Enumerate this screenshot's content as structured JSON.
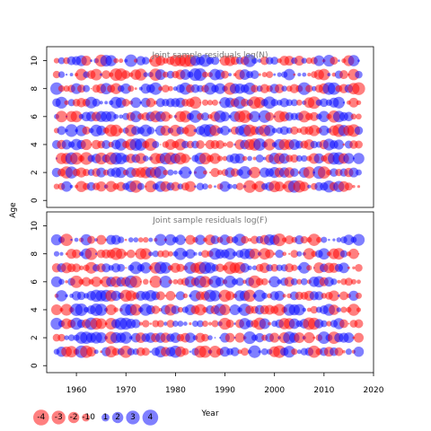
{
  "chart_data": {
    "type": "scatter",
    "variant": "bubble",
    "shared": {
      "ylabel": "Age",
      "xlabel": "Year",
      "xlim": [
        1954,
        2020
      ],
      "x_ticks": [
        1960,
        1970,
        1980,
        1990,
        2000,
        2010,
        2020
      ],
      "ylim": [
        -0.5,
        11
      ],
      "y_ticks": [
        0,
        2,
        4,
        6,
        8,
        10
      ],
      "grid": false,
      "colors": {
        "positive": "#0000ff",
        "negative": "#ff0000"
      },
      "size_encoding": "area proportional to |residual|",
      "legend": {
        "placement": "bottom-left",
        "values": [
          -4,
          -3,
          -2,
          -1,
          0,
          1,
          2,
          3,
          4
        ]
      }
    },
    "panels": [
      {
        "title": "Joint sample residuals log(N)",
        "ages": [
          1,
          2,
          3,
          4,
          5,
          6,
          7,
          8,
          9,
          10
        ],
        "years": [
          1956,
          2017
        ],
        "seed": 11
      },
      {
        "title": "Joint sample residuals log(F)",
        "ages": [
          1,
          2,
          3,
          4,
          5,
          6,
          7,
          8,
          9
        ],
        "years": [
          1956,
          2017
        ],
        "seed": 29
      }
    ]
  }
}
